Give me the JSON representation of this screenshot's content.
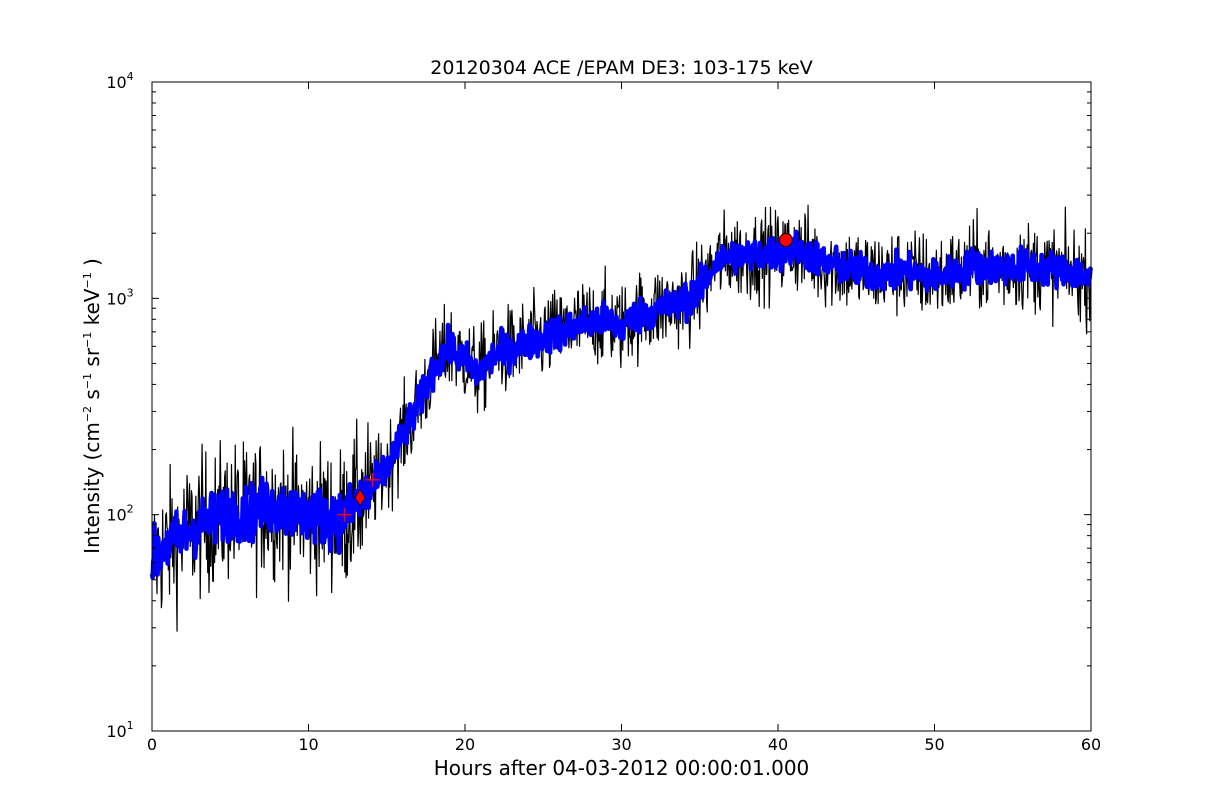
{
  "chart_data": {
    "type": "line",
    "title": "20120304 ACE /EPAM DE3: 103-175 keV",
    "xlabel": "Hours after 04-03-2012 00:00:01.000",
    "ylabel": {
      "prefix": "Intensity (cm",
      "sup1": "−2",
      "mid1": " s",
      "sup2": "−1",
      "mid2": " sr",
      "sup3": "−1",
      "mid3": " keV",
      "sup4": "−1",
      "suffix": " )"
    },
    "xlim": [
      0,
      60
    ],
    "ylim": [
      10,
      10000
    ],
    "yscale": "log",
    "grid": false,
    "x_ticks": [
      0,
      10,
      20,
      30,
      40,
      50,
      60
    ],
    "y_ticks": [
      {
        "base": "10",
        "exp": "1",
        "value": 10
      },
      {
        "base": "10",
        "exp": "2",
        "value": 100
      },
      {
        "base": "10",
        "exp": "3",
        "value": 1000
      },
      {
        "base": "10",
        "exp": "4",
        "value": 10000
      }
    ],
    "series": [
      {
        "color": "#000000",
        "style": "raw",
        "x": [
          0,
          1,
          2,
          3,
          4,
          5,
          6,
          7,
          8,
          9,
          10,
          11,
          12,
          12.5,
          13,
          14,
          15,
          16,
          17,
          18,
          19,
          20,
          20.8,
          22,
          24,
          26,
          28,
          29,
          30,
          30.5,
          32,
          34,
          35,
          36,
          37,
          38,
          39,
          40,
          41,
          42,
          43,
          44,
          45,
          46,
          47,
          48,
          49,
          50,
          51,
          52,
          52.5,
          53,
          54,
          55,
          56,
          57,
          58,
          59,
          60
        ],
        "y": [
          62,
          72,
          80,
          90,
          95,
          105,
          100,
          108,
          110,
          102,
          100,
          98,
          96,
          100,
          110,
          130,
          165,
          230,
          320,
          480,
          590,
          520,
          450,
          550,
          620,
          700,
          780,
          790,
          740,
          800,
          880,
          960,
          1100,
          1450,
          1600,
          1550,
          1600,
          1620,
          1700,
          1600,
          1450,
          1400,
          1350,
          1300,
          1300,
          1330,
          1300,
          1250,
          1300,
          1350,
          1450,
          1400,
          1380,
          1400,
          1420,
          1380,
          1350,
          1330,
          1200
        ],
        "noise": 0.2
      },
      {
        "color": "#0000ff",
        "style": "smoothed",
        "x": [
          0,
          1,
          2,
          3,
          4,
          5,
          6,
          7,
          8,
          9,
          10,
          11,
          12,
          12.5,
          13,
          14,
          15,
          16,
          17,
          18,
          19,
          20,
          20.8,
          22,
          24,
          26,
          28,
          29,
          30,
          30.5,
          32,
          34,
          35,
          36,
          37,
          38,
          39,
          40,
          41,
          42,
          43,
          44,
          45,
          46,
          47,
          48,
          49,
          50,
          51,
          52,
          52.5,
          53,
          54,
          55,
          56,
          57,
          58,
          59,
          60
        ],
        "y": [
          62,
          72,
          80,
          90,
          95,
          105,
          100,
          108,
          110,
          102,
          100,
          98,
          96,
          100,
          110,
          130,
          165,
          230,
          320,
          480,
          590,
          520,
          450,
          550,
          620,
          700,
          780,
          790,
          740,
          800,
          880,
          960,
          1100,
          1450,
          1600,
          1550,
          1600,
          1620,
          1700,
          1600,
          1450,
          1400,
          1350,
          1300,
          1300,
          1330,
          1300,
          1250,
          1300,
          1350,
          1450,
          1400,
          1380,
          1400,
          1420,
          1380,
          1350,
          1330,
          1200
        ],
        "noise": 0.08
      }
    ],
    "markers": [
      {
        "shape": "plus",
        "color": "#ff0000",
        "x": 12.3,
        "y": 100
      },
      {
        "shape": "diamond",
        "color": "#ff0000",
        "x": 13.3,
        "y": 120
      },
      {
        "shape": "plus",
        "color": "#ff0000",
        "x": 14.1,
        "y": 145
      },
      {
        "shape": "circle",
        "color": "#ff0000",
        "x": 40.5,
        "y": 1860
      }
    ]
  }
}
